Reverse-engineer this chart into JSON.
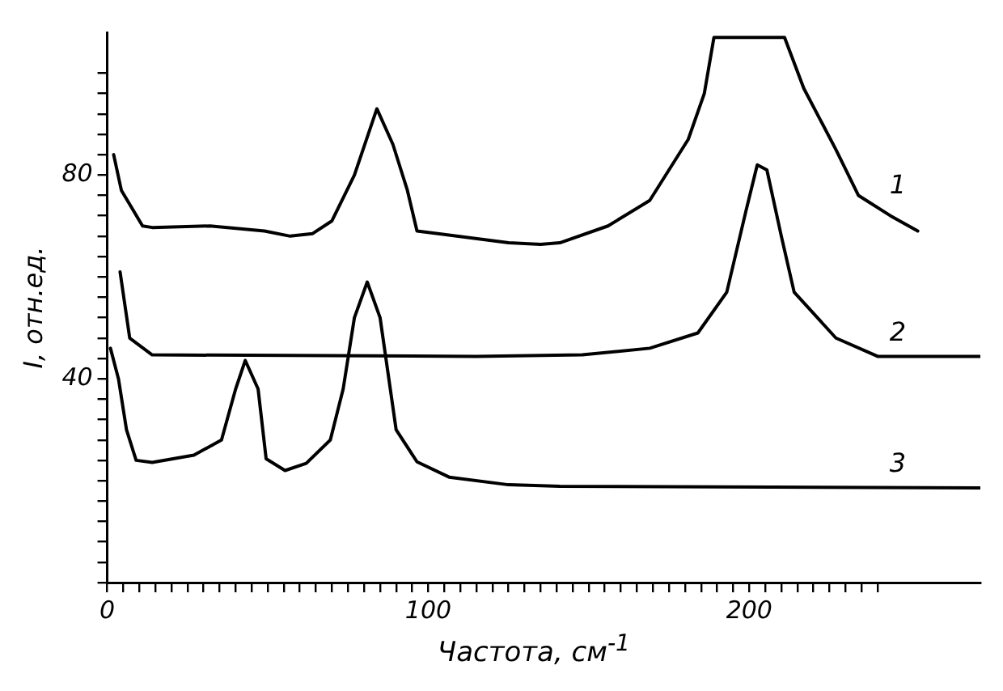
{
  "chart_data": {
    "type": "line",
    "xlabel": "Частота, см$^{-1}$",
    "ylabel": "I, отн.ед.",
    "xlim": [
      0,
      272
    ],
    "ylim": [
      0,
      108
    ],
    "xticks": [
      0,
      {
        "value": 5,
        "label": null
      },
      {
        "value": 10,
        "label": null
      },
      {
        "value": 15,
        "label": null
      },
      {
        "value": 20,
        "label": null
      },
      {
        "value": 25,
        "label": null
      },
      {
        "value": 30,
        "label": null
      },
      {
        "value": 35,
        "label": null
      },
      {
        "value": 40,
        "label": null
      },
      {
        "value": 45,
        "label": null
      },
      {
        "value": 50,
        "label": null
      },
      {
        "value": 55,
        "label": null
      },
      {
        "value": 60,
        "label": null
      },
      {
        "value": 65,
        "label": null
      },
      {
        "value": 70,
        "label": null
      },
      {
        "value": 75,
        "label": null
      },
      {
        "value": 80,
        "label": null
      },
      {
        "value": 85,
        "label": null
      },
      {
        "value": 90,
        "label": null
      },
      {
        "value": 95,
        "label": null
      },
      100,
      {
        "value": 105,
        "label": null
      },
      {
        "value": 110,
        "label": null
      },
      {
        "value": 115,
        "label": null
      },
      {
        "value": 120,
        "label": null
      },
      {
        "value": 125,
        "label": null
      },
      {
        "value": 130,
        "label": null
      },
      {
        "value": 135,
        "label": null
      },
      {
        "value": 140,
        "label": null
      },
      {
        "value": 145,
        "label": null
      },
      {
        "value": 150,
        "label": null
      },
      {
        "value": 155,
        "label": null
      },
      {
        "value": 160,
        "label": null
      },
      {
        "value": 165,
        "label": null
      },
      {
        "value": 170,
        "label": null
      },
      {
        "value": 175,
        "label": null
      },
      {
        "value": 180,
        "label": null
      },
      {
        "value": 185,
        "label": null
      },
      {
        "value": 190,
        "label": null
      },
      {
        "value": 195,
        "label": null
      },
      200,
      {
        "value": 205,
        "label": null
      },
      {
        "value": 210,
        "label": null
      },
      {
        "value": 215,
        "label": null
      },
      {
        "value": 220,
        "label": null
      },
      {
        "value": 225,
        "label": null
      },
      {
        "value": 230,
        "label": null
      },
      {
        "value": 235,
        "label": null
      },
      {
        "value": 240,
        "label": null
      }
    ],
    "yticks": [
      {
        "value": 0,
        "label": null
      },
      {
        "value": 4,
        "label": null
      },
      {
        "value": 8,
        "label": null
      },
      {
        "value": 12,
        "label": null
      },
      {
        "value": 16,
        "label": null
      },
      {
        "value": 20,
        "label": null
      },
      {
        "value": 24,
        "label": null
      },
      {
        "value": 28,
        "label": null
      },
      {
        "value": 32,
        "label": null
      },
      {
        "value": 36,
        "label": null
      },
      40,
      {
        "value": 44,
        "label": null
      },
      {
        "value": 48,
        "label": null
      },
      {
        "value": 52,
        "label": null
      },
      {
        "value": 56,
        "label": null
      },
      {
        "value": 60,
        "label": null
      },
      {
        "value": 64,
        "label": null
      },
      {
        "value": 68,
        "label": null
      },
      {
        "value": 72,
        "label": null
      },
      {
        "value": 76,
        "label": null
      },
      80,
      {
        "value": 84,
        "label": null
      },
      {
        "value": 88,
        "label": null
      },
      {
        "value": 92,
        "label": null
      },
      {
        "value": 96,
        "label": null
      },
      {
        "value": 100,
        "label": null
      }
    ],
    "grid": false,
    "legend": false,
    "marker": "none",
    "line_style": "solid",
    "series": [
      {
        "name": "1",
        "color": "#000000",
        "x": [
          2,
          4.4,
          11,
          14,
          32,
          49,
          57,
          64,
          70,
          77,
          84,
          89,
          93.5,
          96.5,
          103,
          125,
          135,
          141,
          156,
          169,
          181,
          186,
          189,
          211,
          217,
          227,
          234,
          244,
          252.5
        ],
        "values": [
          84,
          77,
          70,
          69.7,
          70,
          69,
          68,
          68.5,
          71,
          80,
          93,
          86,
          77,
          69,
          68.5,
          66.7,
          66.4,
          66.7,
          70,
          75,
          87,
          96,
          107,
          107,
          97,
          85,
          76,
          72,
          69
        ]
      },
      {
        "name": "2",
        "color": "#000000",
        "x": [
          4,
          7,
          14,
          115,
          148,
          169,
          184,
          193,
          199,
          202.5,
          205.5,
          210,
          214,
          227,
          240,
          272
        ],
        "values": [
          61,
          48,
          44.7,
          44.4,
          44.7,
          46,
          49,
          57,
          73,
          82,
          81,
          68,
          57,
          48,
          44.4,
          44.4
        ]
      },
      {
        "name": "3",
        "color": "#000000",
        "x": [
          1,
          3.5,
          6,
          9,
          14,
          27,
          35.6,
          40,
          43,
          47,
          49.5,
          55.4,
          62,
          69.5,
          73.5,
          77,
          81,
          85,
          90,
          96.5,
          106.5,
          125,
          141,
          272
        ],
        "values": [
          46,
          40,
          30,
          24,
          23.6,
          25,
          28,
          38,
          43.6,
          38,
          24.3,
          22,
          23.4,
          28,
          38,
          52,
          59,
          52,
          30,
          23.7,
          20.7,
          19.2,
          18.9,
          18.6
        ]
      }
    ]
  }
}
